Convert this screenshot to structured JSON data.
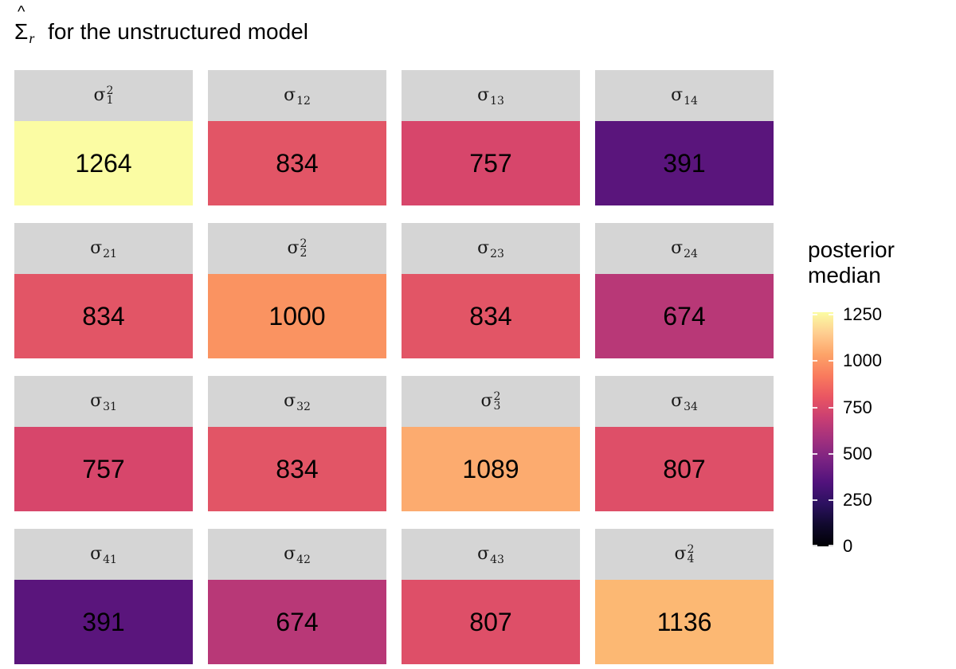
{
  "title": {
    "hat": "^",
    "sigma": "Σ",
    "subscript": "r",
    "text": "for the unstructured model"
  },
  "legend": {
    "title_line1": "posterior",
    "title_line2": "median",
    "ticks": [
      "1250",
      "1000",
      "750",
      "500",
      "250",
      "0"
    ],
    "tick_values": [
      1250,
      1000,
      750,
      500,
      250,
      0
    ],
    "gradient": [
      "#000004",
      "#10092d",
      "#2c1160",
      "#51127c",
      "#782282",
      "#a1307e",
      "#c83e73",
      "#e95562",
      "#f97a5d",
      "#fda368",
      "#fecd90",
      "#fbfca3"
    ]
  },
  "chart_data": {
    "type": "heatmap",
    "title": "Σ̂_r for the unstructured model",
    "legend_title": "posterior median",
    "rows": 4,
    "cols": 4,
    "matrix": [
      [
        1264,
        834,
        757,
        391
      ],
      [
        834,
        1000,
        834,
        674
      ],
      [
        757,
        834,
        1089,
        807
      ],
      [
        391,
        674,
        807,
        1136
      ]
    ],
    "scale": {
      "palette": "magma",
      "limits": [
        0,
        1264
      ],
      "legend_ticks": [
        0,
        250,
        500,
        750,
        1000,
        1250
      ]
    },
    "cells": [
      {
        "sigma": "σ",
        "sub": "1",
        "sup": "2",
        "value": 1264,
        "color": "#fbfca3"
      },
      {
        "sigma": "σ",
        "sub": "12",
        "sup": "",
        "value": 834,
        "color": "#e25566"
      },
      {
        "sigma": "σ",
        "sub": "13",
        "sup": "",
        "value": 757,
        "color": "#d7466b"
      },
      {
        "sigma": "σ",
        "sub": "14",
        "sup": "",
        "value": 391,
        "color": "#5a157c"
      },
      {
        "sigma": "σ",
        "sub": "21",
        "sup": "",
        "value": 834,
        "color": "#e25566"
      },
      {
        "sigma": "σ",
        "sub": "2",
        "sup": "2",
        "value": 1000,
        "color": "#fa9361"
      },
      {
        "sigma": "σ",
        "sub": "23",
        "sup": "",
        "value": 834,
        "color": "#e25566"
      },
      {
        "sigma": "σ",
        "sub": "24",
        "sup": "",
        "value": 674,
        "color": "#b83877"
      },
      {
        "sigma": "σ",
        "sub": "31",
        "sup": "",
        "value": 757,
        "color": "#d7466b"
      },
      {
        "sigma": "σ",
        "sub": "32",
        "sup": "",
        "value": 834,
        "color": "#e25566"
      },
      {
        "sigma": "σ",
        "sub": "3",
        "sup": "2",
        "value": 1089,
        "color": "#fcab6f"
      },
      {
        "sigma": "σ",
        "sub": "34",
        "sup": "",
        "value": 807,
        "color": "#de4f68"
      },
      {
        "sigma": "σ",
        "sub": "41",
        "sup": "",
        "value": 391,
        "color": "#5a157c"
      },
      {
        "sigma": "σ",
        "sub": "42",
        "sup": "",
        "value": 674,
        "color": "#b83877"
      },
      {
        "sigma": "σ",
        "sub": "43",
        "sup": "",
        "value": 807,
        "color": "#de4f68"
      },
      {
        "sigma": "σ",
        "sub": "4",
        "sup": "2",
        "value": 1136,
        "color": "#fcb873"
      }
    ]
  }
}
